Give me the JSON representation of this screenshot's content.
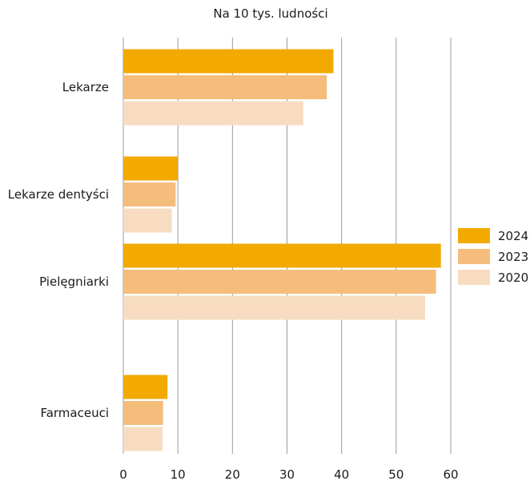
{
  "chart_data": {
    "type": "bar",
    "orientation": "horizontal",
    "title": "Na 10 tys. ludności",
    "xlabel": "",
    "ylabel": "",
    "categories": [
      "Lekarze",
      "Lekarze dentyści",
      "Pielęgniarki",
      "Farmaceuci"
    ],
    "series": [
      {
        "name": "2024",
        "color": "#f2a900",
        "values": [
          38.5,
          10.0,
          58.2,
          8.1
        ]
      },
      {
        "name": "2023",
        "color": "#f5bd7c",
        "values": [
          37.3,
          9.6,
          57.3,
          7.3
        ]
      },
      {
        "name": "2020",
        "color": "#f7dcc1",
        "values": [
          33.0,
          8.9,
          55.3,
          7.2
        ]
      }
    ],
    "xlim": [
      0,
      60
    ],
    "xticks": [
      0,
      10,
      20,
      30,
      40,
      50,
      60
    ],
    "grid": true,
    "legend_position": "right"
  }
}
